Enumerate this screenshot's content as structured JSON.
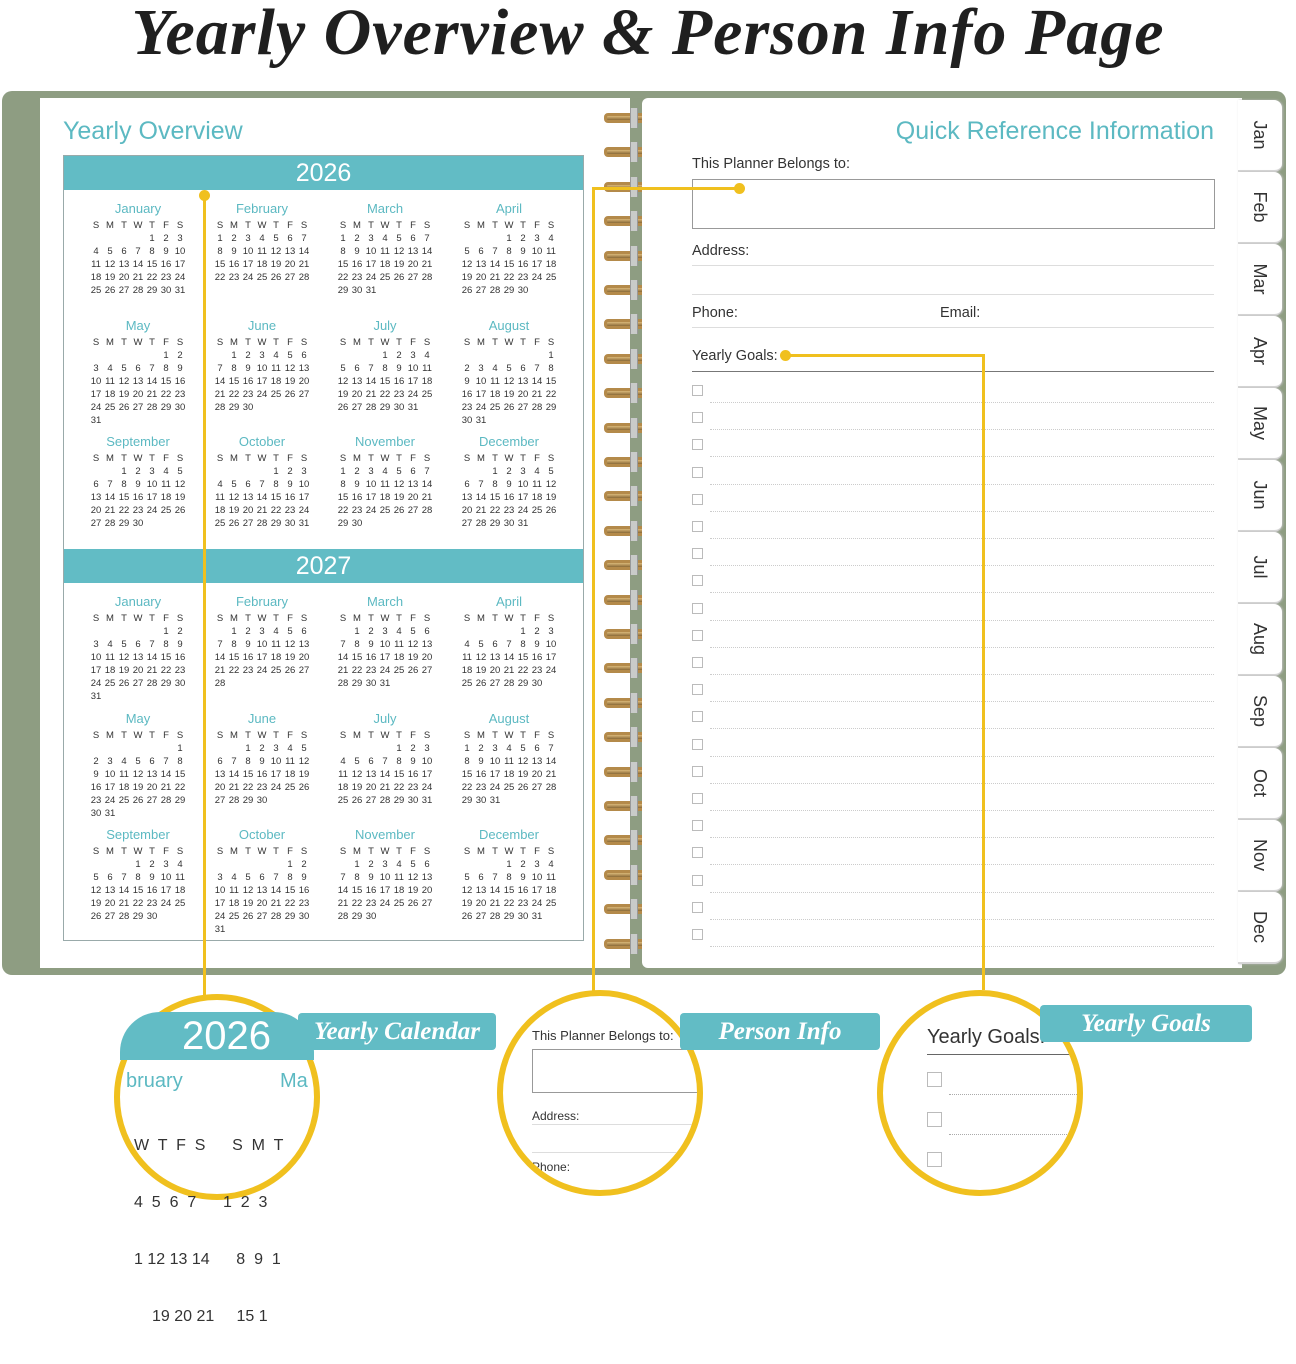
{
  "title": "Yearly Overview & Person Info Page",
  "colors": {
    "accent": "#62bcc5",
    "cover": "#8e9d82",
    "callout": "#f0c01e"
  },
  "left_page": {
    "title": "Yearly Overview",
    "weekdays": [
      "S",
      "M",
      "T",
      "W",
      "T",
      "F",
      "S"
    ],
    "months": [
      "January",
      "February",
      "March",
      "April",
      "May",
      "June",
      "July",
      "August",
      "September",
      "October",
      "November",
      "December"
    ],
    "years": [
      "2026",
      "2027"
    ]
  },
  "right_page": {
    "title": "Quick Reference Information",
    "belongs_label": "This Planner Belongs to:",
    "address_label": "Address:",
    "phone_label": "Phone:",
    "email_label": "Email:",
    "goals_label": "Yearly Goals:",
    "goal_checkbox_count": 21
  },
  "tabs": [
    "Jan",
    "Feb",
    "Mar",
    "Apr",
    "May",
    "Jun",
    "Jul",
    "Aug",
    "Sep",
    "Oct",
    "Nov",
    "Dec"
  ],
  "callouts": {
    "calendar": {
      "label": "Yearly Calendar",
      "year": "2026",
      "month_a": "bruary",
      "month_b": "Ma",
      "weekdays": "W  T  F  S      S  M  T",
      "rows": [
        "4  5  6  7      1  2  3",
        "1 12 13 14      8  9  1",
        "19 20 21     15 1"
      ]
    },
    "person": {
      "label": "Person Info",
      "belongs": "This Planner Belongs to:",
      "address": "Address:",
      "phone": "Phone:"
    },
    "goals": {
      "label": "Yearly Goals",
      "heading": "Yearly Goals:"
    }
  }
}
